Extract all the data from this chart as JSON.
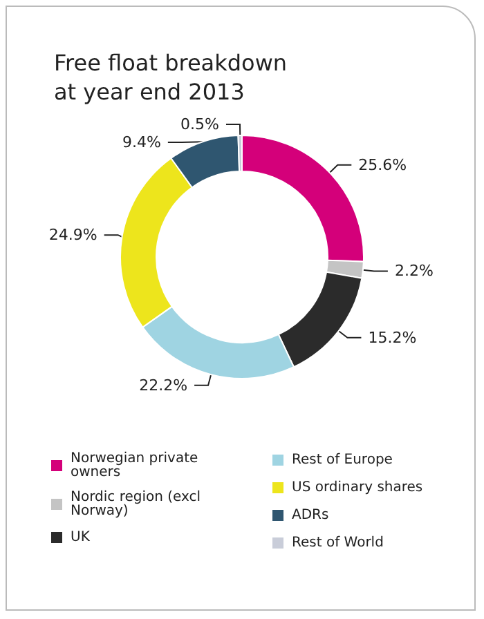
{
  "chart_data": {
    "type": "donut",
    "title": "Free float breakdown\nat year end 2013",
    "categories": [
      "Norwegian private owners",
      "Nordic region (excl Norway)",
      "UK",
      "Rest of Europe",
      "US ordinary shares",
      "ADRs",
      "Rest of World"
    ],
    "values": [
      25.6,
      2.2,
      15.2,
      22.2,
      24.9,
      9.4,
      0.5
    ],
    "colors": [
      "#d4007a",
      "#c4c4c4",
      "#2b2b2b",
      "#9fd4e2",
      "#ede51c",
      "#2f5670",
      "#c9cdd9"
    ],
    "value_labels": [
      "25.6%",
      "2.2%",
      "15.2%",
      "22.2%",
      "24.9%",
      "9.4%",
      "0.5%"
    ],
    "legend": "bottom"
  }
}
